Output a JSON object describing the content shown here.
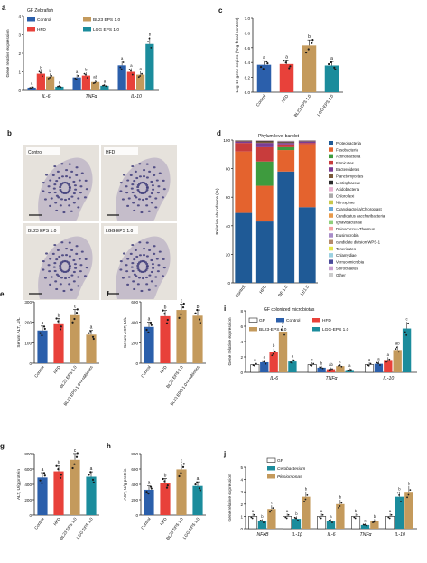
{
  "colors": {
    "control": "#2b5fab",
    "hfd": "#e8413a",
    "bl23": "#c49a5c",
    "lgg": "#1b8c9c",
    "gf": "#ffffff",
    "axis": "#222222",
    "dot": "#1a1a1a"
  },
  "panels": {
    "a": {
      "letter": "a",
      "title": "GF Zebrafish",
      "legend": [
        "Control",
        "HFD",
        "BL23 EPS 1.0",
        "LGG EPS 1.0"
      ],
      "chart_data": {
        "type": "bar",
        "categories": [
          "IL-6",
          "TNFα",
          "IL-10"
        ],
        "series": [
          {
            "name": "Control",
            "values": [
              0.15,
              0.7,
              1.35
            ]
          },
          {
            "name": "HFD",
            "values": [
              0.9,
              0.8,
              1.0
            ]
          },
          {
            "name": "BL23 EPS 1.0",
            "values": [
              0.75,
              0.45,
              0.85
            ]
          },
          {
            "name": "LGG EPS 1.0",
            "values": [
              0.2,
              0.25,
              2.5
            ]
          }
        ],
        "letters": [
          [
            "a",
            "b",
            "b",
            "a"
          ],
          [
            "a",
            "b",
            "ab",
            "a"
          ],
          [
            "a",
            "a",
            "a",
            "b"
          ]
        ],
        "ylabel": "Gene relative expression",
        "ylim": [
          0,
          4
        ],
        "yticks": [
          "0",
          "1",
          "2",
          "3",
          "4"
        ]
      }
    },
    "c": {
      "letter": "c",
      "chart_data": {
        "type": "bar",
        "categories": [
          "Control",
          "HFD",
          "BL23 EPS 1.0",
          "LGG EPS 1.0"
        ],
        "values": [
          6.37,
          6.38,
          6.63,
          6.36
        ],
        "letters": [
          "a",
          "a",
          "b",
          "a"
        ],
        "ylabel": "Log 10 gene copies (/mg fecal content)",
        "ylim": [
          6.0,
          7.0
        ],
        "yticks": [
          "6.0",
          "6.2",
          "6.4",
          "6.6",
          "6.8",
          "7.0"
        ]
      }
    },
    "b": {
      "letter": "b",
      "images": [
        "Control",
        "HFD",
        "BL23 EPS 1.0",
        "LGG EPS 1.0"
      ]
    },
    "d": {
      "letter": "d",
      "title": "Phylum level barplot",
      "chart_data": {
        "type": "bar",
        "stacked": true,
        "categories": [
          "Control",
          "HFD",
          "BE 1.0",
          "LE1.0"
        ],
        "ylabel": "Relative abundance (%)",
        "ylim": [
          0,
          100
        ],
        "yticks": [
          "0",
          "20",
          "40",
          "60",
          "80",
          "100"
        ],
        "series": [
          {
            "name": "Proteobacteria",
            "color": "#1f5a96",
            "values": [
              49,
              43,
              78,
              53
            ]
          },
          {
            "name": "Fusobacteria",
            "color": "#e4632e",
            "values": [
              43,
              25,
              15,
              44
            ]
          },
          {
            "name": "Actinobacteria",
            "color": "#3e9b3e",
            "values": [
              0,
              17,
              2,
              0
            ]
          },
          {
            "name": "Firmicutes",
            "color": "#c83c3c",
            "values": [
              6,
              10,
              2,
              1
            ]
          },
          {
            "name": "Bacteroidetes",
            "color": "#7b3c94",
            "values": [
              1,
              3,
              1,
              1
            ]
          },
          {
            "name": "Planctomycetes",
            "color": "#7a5a3a",
            "values": [
              0.5,
              1,
              0.5,
              0.3
            ]
          },
          {
            "name": "Lentisphaerae",
            "color": "#2a2a2a",
            "values": [
              0.2,
              0.5,
              0.5,
              0.3
            ]
          },
          {
            "name": "Acidobacteria",
            "color": "#e8b0d0",
            "values": [
              0.1,
              0.3,
              0.3,
              0.2
            ]
          },
          {
            "name": "Chloroflexi",
            "color": "#aaaaaa",
            "values": [
              0.1,
              0.2,
              0.2,
              0.1
            ]
          },
          {
            "name": "Nitrospirae",
            "color": "#c8c84a",
            "values": [
              0,
              0,
              0,
              0
            ]
          },
          {
            "name": "Cyanobacteria/Chloroplast",
            "color": "#6aa9d8",
            "values": [
              0,
              0,
              0,
              0
            ]
          },
          {
            "name": "Candidatus saccharibacteria",
            "color": "#e89a4a",
            "values": [
              0,
              0,
              0,
              0
            ]
          },
          {
            "name": "Ignavibacteriae",
            "color": "#8fcf7a",
            "values": [
              0,
              0,
              0,
              0
            ]
          },
          {
            "name": "Deinococcus-Thermus",
            "color": "#f2a0a0",
            "values": [
              0,
              0,
              0,
              0
            ]
          },
          {
            "name": "Elusimicrobia",
            "color": "#a88cc8",
            "values": [
              0,
              0,
              0,
              0
            ]
          },
          {
            "name": "candidate division WPS-1",
            "color": "#b58a6a",
            "values": [
              0,
              0,
              0,
              0
            ]
          },
          {
            "name": "Tenericutes",
            "color": "#e6e64a",
            "values": [
              0,
              0,
              0,
              0
            ]
          },
          {
            "name": "Chlamydiae",
            "color": "#9ad0e0",
            "values": [
              0,
              0,
              0,
              0
            ]
          },
          {
            "name": "Verrucomicrobia",
            "color": "#4a4a9a",
            "values": [
              0,
              0,
              0,
              0
            ]
          },
          {
            "name": "Spirochaetes",
            "color": "#c8a0d0",
            "values": [
              0,
              0,
              0,
              0
            ]
          },
          {
            "name": "Other",
            "color": "#cccccc",
            "values": [
              0,
              0,
              0,
              0
            ]
          }
        ]
      }
    },
    "e": {
      "letter": "e",
      "chart_data": {
        "type": "bar",
        "categories": [
          "Control",
          "HFD",
          "BL23 EPS 1.0",
          "BL23 EPS 1.0+Antibiotics"
        ],
        "values": [
          160,
          195,
          235,
          140
        ],
        "letters": [
          "a",
          "b",
          "c",
          "a"
        ],
        "ylabel": "Serum ALT, U/L",
        "ylim": [
          0,
          300
        ],
        "yticks": [
          "0",
          "100",
          "200",
          "300"
        ]
      }
    },
    "f": {
      "letter": "f",
      "chart_data": {
        "type": "bar",
        "categories": [
          "Control",
          "HFD",
          "BL23 EPS 1.0",
          "BL23 EPS 1.0+Antibiotics"
        ],
        "values": [
          355,
          460,
          520,
          465
        ],
        "letters": [
          "a",
          "b",
          "c",
          "b"
        ],
        "ylabel": "Serum AST, U/L",
        "ylim": [
          0,
          600
        ],
        "yticks": [
          "0",
          "200",
          "400",
          "600"
        ]
      }
    },
    "g": {
      "letter": "g",
      "chart_data": {
        "type": "bar",
        "categories": [
          "Control",
          "HFD",
          "BL23 EPS 1.0",
          "LGG EPS 1.0"
        ],
        "values": [
          490,
          570,
          720,
          500
        ],
        "letters": [
          "a",
          "b",
          "c",
          "a"
        ],
        "ylabel": "ALT, U/g protein",
        "ylim": [
          0,
          800
        ],
        "yticks": [
          "0",
          "200",
          "400",
          "600",
          "800"
        ]
      }
    },
    "h": {
      "letter": "h",
      "chart_data": {
        "type": "bar",
        "categories": [
          "Control",
          "HFD",
          "BL23 EPS 1.0",
          "LGG EPS 1.0"
        ],
        "values": [
          330,
          420,
          595,
          380
        ],
        "letters": [
          "a",
          "b",
          "c",
          "a"
        ],
        "ylabel": "AST, U/g protein",
        "ylim": [
          0,
          800
        ],
        "yticks": [
          "0",
          "200",
          "400",
          "600",
          "800"
        ]
      }
    },
    "i": {
      "letter": "i",
      "title": "GF colonized microbiotas",
      "legend": [
        "GF",
        "Control",
        "HFD",
        "BL23-EPS 1.0",
        "LGG-EPS 1.0"
      ],
      "chart_data": {
        "type": "bar",
        "categories": [
          "IL-6",
          "TNFα",
          "IL-10"
        ],
        "series": [
          {
            "name": "GF",
            "values": [
              1.0,
              1.0,
              1.0
            ]
          },
          {
            "name": "Control",
            "values": [
              1.3,
              0.6,
              1.1
            ]
          },
          {
            "name": "HFD",
            "values": [
              2.6,
              0.4,
              1.6
            ]
          },
          {
            "name": "BL23-EPS 1.0",
            "values": [
              5.3,
              0.8,
              2.9
            ]
          },
          {
            "name": "LGG-EPS 1.0",
            "values": [
              1.4,
              0.3,
              5.7
            ]
          }
        ],
        "letters": [
          [
            "a",
            "a",
            "b",
            "c",
            "a"
          ],
          [
            "c",
            "b",
            "ab",
            "c",
            "a"
          ],
          [
            "a",
            "a",
            "a",
            "ab",
            "c"
          ]
        ],
        "ylabel": "Gene relative expression",
        "ylim": [
          0,
          8
        ],
        "yticks": [
          "0",
          "2",
          "4",
          "6",
          "8"
        ]
      }
    },
    "j": {
      "letter": "j",
      "legend": [
        "GF",
        "Cetobacterium",
        "Plesiomonas"
      ],
      "chart_data": {
        "type": "bar",
        "categories": [
          "NFκB",
          "IL-1β",
          "IL-6",
          "TNFα",
          "IL-10"
        ],
        "series": [
          {
            "name": "GF",
            "values": [
              1.0,
              1.0,
              1.0,
              1.0,
              1.0
            ]
          },
          {
            "name": "Cetobacterium",
            "values": [
              0.6,
              0.8,
              0.6,
              0.3,
              2.6
            ]
          },
          {
            "name": "Plesiomonas",
            "values": [
              1.6,
              2.6,
              2.0,
              0.6,
              3.0
            ]
          }
        ],
        "letters": [
          [
            "a",
            "b",
            "c"
          ],
          [
            "a",
            "b",
            "b"
          ],
          [
            "a",
            "a",
            "b"
          ],
          [
            "b",
            "a",
            "b"
          ],
          [
            "a",
            "b",
            "b"
          ]
        ],
        "ylabel": "Gene relative expression",
        "ylim": [
          0,
          5
        ],
        "yticks": [
          "0",
          "1",
          "2",
          "3",
          "4",
          "5"
        ]
      }
    }
  }
}
